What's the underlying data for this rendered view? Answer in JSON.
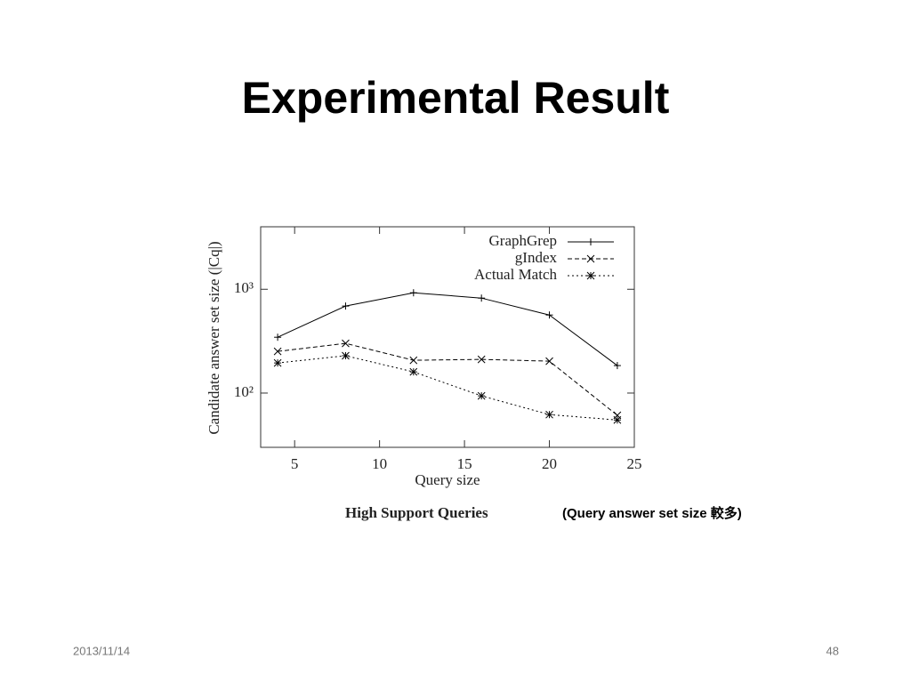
{
  "title": "Experimental Result",
  "chart_data": {
    "type": "line",
    "x_label": "Query size",
    "y_label": "Candidate answer set size (|Cq|)",
    "caption": "High Support Queries",
    "x": [
      4,
      8,
      12,
      16,
      20,
      24
    ],
    "series": [
      {
        "name": "GraphGrep",
        "color": "#000000",
        "dash": "solid",
        "marker": "+",
        "values": [
          345,
          689,
          925,
          822,
          565,
          184
        ]
      },
      {
        "name": "gIndex",
        "color": "#000000",
        "dash": "dashed",
        "marker": "x",
        "values": [
          252,
          301,
          207,
          211,
          203,
          61
        ]
      },
      {
        "name": "Actual Match",
        "color": "#000000",
        "dash": "dotted",
        "marker": "*",
        "values": [
          195,
          229,
          160,
          94,
          62,
          55
        ]
      }
    ],
    "xlim": [
      3,
      25
    ],
    "xticks": [
      5,
      10,
      15,
      20,
      25
    ],
    "ylim": [
      30,
      4000
    ],
    "ylog": true,
    "yticks": [
      {
        "value": 100,
        "label": "10²"
      },
      {
        "value": 1000,
        "label": "10³"
      }
    ],
    "legend": "upper right"
  },
  "note": "(Query answer set size 較多)",
  "footer": {
    "date": "2013/11/14",
    "page": "48"
  }
}
